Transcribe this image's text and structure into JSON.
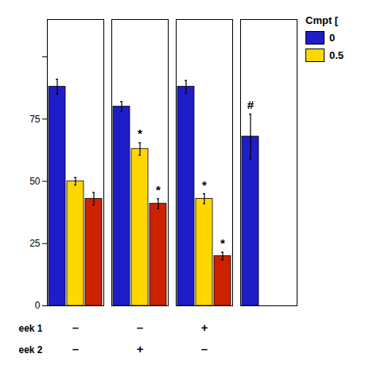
{
  "chart_data": {
    "type": "bar",
    "categories": [
      null,
      null,
      null,
      null
    ],
    "series": [
      {
        "name": "0",
        "color": "#1e1ec8",
        "values": [
          88,
          80,
          88,
          68
        ],
        "errors": [
          3.0,
          2.0,
          2.5,
          9.0
        ]
      },
      {
        "name": "0.5",
        "color": "#ffd700",
        "values": [
          50,
          63,
          43,
          null
        ],
        "errors": [
          1.5,
          2.5,
          2.0,
          null
        ]
      },
      {
        "color": "#cc2200",
        "values": [
          43,
          41,
          20,
          null
        ],
        "errors": [
          2.5,
          2.0,
          1.5,
          null
        ]
      }
    ],
    "ylim": [
      0,
      115
    ],
    "yticks": [
      0,
      25,
      50,
      75,
      {
        "value": 100,
        "label": ""
      }
    ],
    "grid": false,
    "legend": "right",
    "legend_title": "Cmpt [",
    "annotations": [
      {
        "category": 1,
        "series": 1,
        "text": "*"
      },
      {
        "category": 1,
        "series": 2,
        "text": "*"
      },
      {
        "category": 2,
        "series": 1,
        "text": "*"
      },
      {
        "category": 2,
        "series": 2,
        "text": "*"
      },
      {
        "category": 3,
        "series": 0,
        "text": "#"
      }
    ],
    "week_rows": [
      {
        "label": "eek 1",
        "values": [
          "–",
          "–",
          "+",
          null
        ]
      },
      {
        "label": "eek 2",
        "values": [
          "–",
          "+",
          "–",
          null
        ]
      }
    ]
  }
}
